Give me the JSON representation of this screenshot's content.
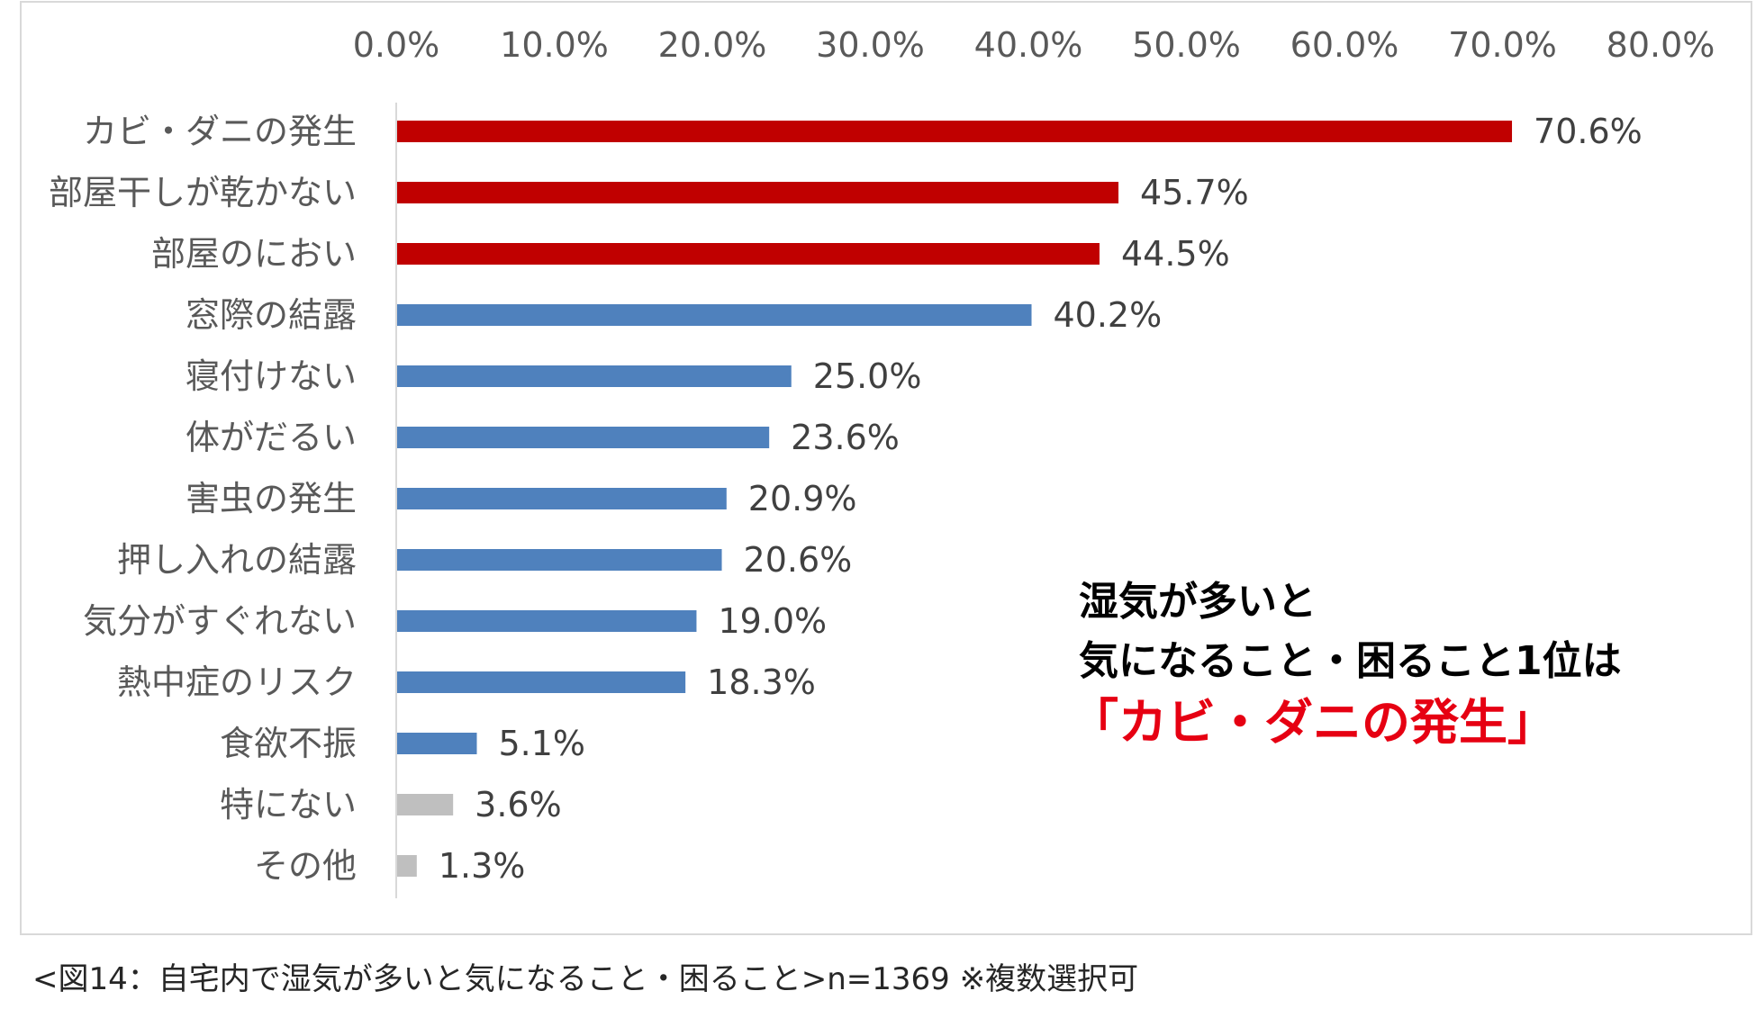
{
  "chart_data": {
    "type": "bar",
    "orientation": "horizontal",
    "categories": [
      "カビ・ダニの発生",
      "部屋干しが乾かない",
      "部屋のにおい",
      "窓際の結露",
      "寝付けない",
      "体がだるい",
      "害虫の発生",
      "押し入れの結露",
      "気分がすぐれない",
      "熱中症のリスク",
      "食欲不振",
      "特にない",
      "その他"
    ],
    "values": [
      70.6,
      45.7,
      44.5,
      40.2,
      25.0,
      23.6,
      20.9,
      20.6,
      19.0,
      18.3,
      5.1,
      3.6,
      1.3
    ],
    "value_labels": [
      "70.6%",
      "45.7%",
      "44.5%",
      "40.2%",
      "25.0%",
      "23.6%",
      "20.9%",
      "20.6%",
      "19.0%",
      "18.3%",
      "5.1%",
      "3.6%",
      "1.3%"
    ],
    "bar_colors": [
      "#c00000",
      "#c00000",
      "#c00000",
      "#4f81bd",
      "#4f81bd",
      "#4f81bd",
      "#4f81bd",
      "#4f81bd",
      "#4f81bd",
      "#4f81bd",
      "#4f81bd",
      "#bfbfbf",
      "#bfbfbf"
    ],
    "xlim": [
      0,
      80
    ],
    "xticks": [
      "0.0%",
      "10.0%",
      "20.0%",
      "30.0%",
      "40.0%",
      "50.0%",
      "60.0%",
      "70.0%",
      "80.0%"
    ],
    "axis_position": "top",
    "grid": false,
    "legend": false
  },
  "callout": {
    "line1": "湿気が多いと",
    "line2": "気になること・困ること1位は",
    "line3": "「カビ・ダニの発生」",
    "highlight_color": "#e60012"
  },
  "caption": "<図14：自宅内で湿気が多いと気になること・困ること>n=1369 ※複数選択可"
}
